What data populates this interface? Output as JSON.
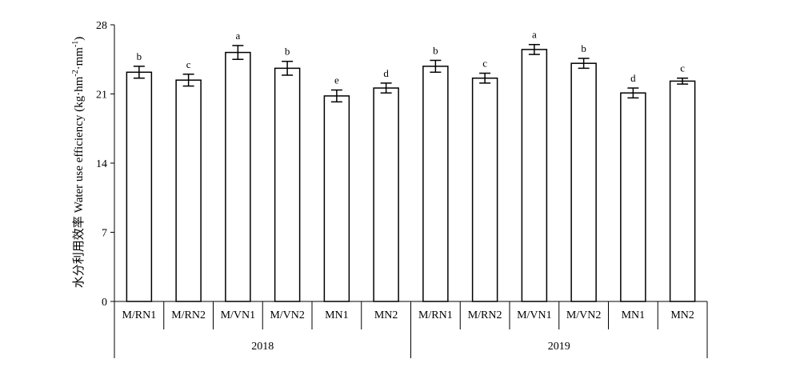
{
  "chart_data": {
    "type": "bar",
    "ylabel_cn": "水分利用效率",
    "ylabel_en": "Water use efficiency (kg·hm",
    "ylabel_sup1": "-2",
    "ylabel_mid": "·mm",
    "ylabel_sup2": "-1",
    "ylabel_end": ")",
    "ylim": [
      0,
      28
    ],
    "yticks": [
      "0",
      "7",
      "14",
      "21",
      "28"
    ],
    "ytick_values": [
      0,
      7,
      14,
      21,
      28
    ],
    "groups": [
      {
        "label": "2018",
        "categories": [
          "M/RN1",
          "M/RN2",
          "M/VN1",
          "M/VN2",
          "MN1",
          "MN2"
        ],
        "values": [
          23.2,
          22.4,
          25.2,
          23.6,
          20.8,
          21.6
        ],
        "errors": [
          0.6,
          0.6,
          0.7,
          0.7,
          0.6,
          0.5
        ],
        "significance": [
          "b",
          "c",
          "a",
          "b",
          "e",
          "d"
        ]
      },
      {
        "label": "2019",
        "categories": [
          "M/RN1",
          "M/RN2",
          "M/VN1",
          "M/VN2",
          "MN1",
          "MN2"
        ],
        "values": [
          23.8,
          22.6,
          25.5,
          24.1,
          21.1,
          22.3
        ],
        "errors": [
          0.6,
          0.5,
          0.5,
          0.5,
          0.5,
          0.3
        ],
        "significance": [
          "b",
          "c",
          "a",
          "b",
          "d",
          "c"
        ]
      }
    ],
    "bar_fill": "#ffffff",
    "bar_stroke": "#000000",
    "grid": false
  }
}
